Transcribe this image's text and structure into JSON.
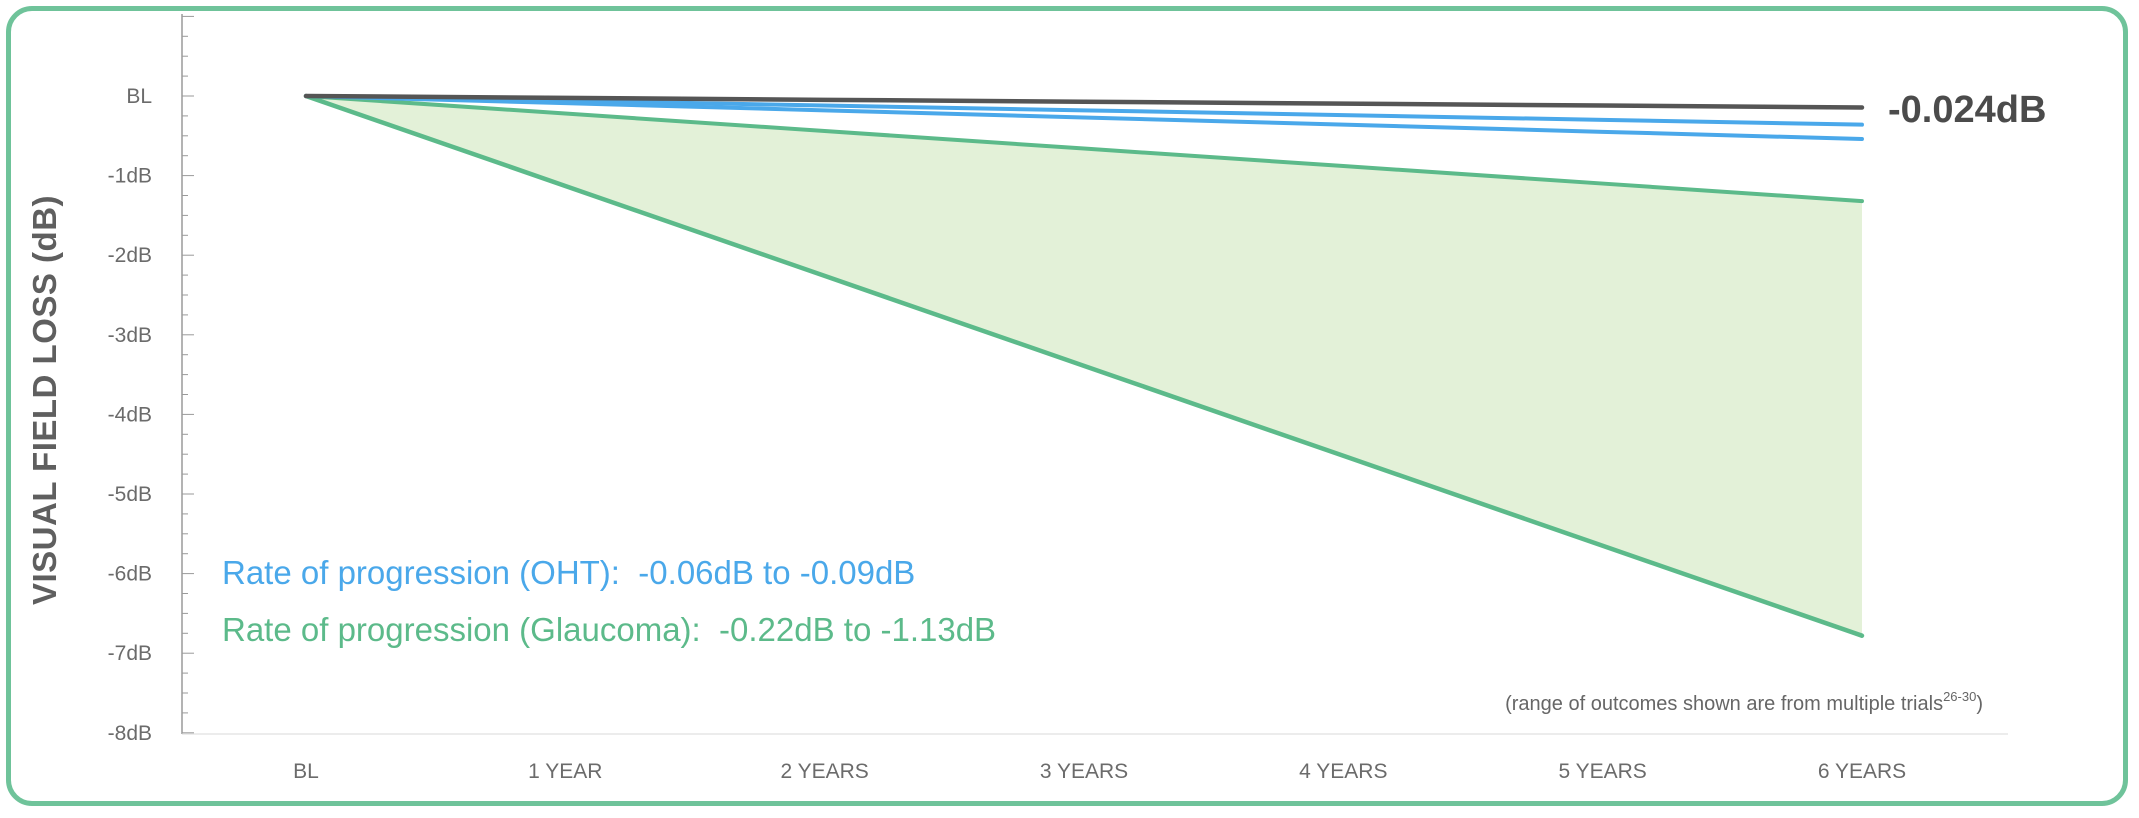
{
  "chart_data": {
    "type": "area",
    "ylabel": "VISUAL FIELD LOSS (dB)",
    "categories": [
      "BL",
      "1 YEAR",
      "2 YEARS",
      "3 YEARS",
      "4 YEARS",
      "5 YEARS",
      "6 YEARS"
    ],
    "x_values": [
      0,
      1,
      2,
      3,
      4,
      5,
      6
    ],
    "y_tick_labels": [
      "BL",
      "-1dB",
      "-2dB",
      "-3dB",
      "-4dB",
      "-5dB",
      "-6dB",
      "-7dB",
      "-8dB"
    ],
    "y_tick_values": [
      0,
      -1,
      -2,
      -3,
      -4,
      -5,
      -6,
      -7,
      -8
    ],
    "ylim": [
      -8,
      1
    ],
    "xlim": [
      -0.5,
      6.5
    ],
    "grid": false,
    "series": [
      {
        "name": "",
        "values": [
          0,
          -0.024,
          -0.048,
          -0.072,
          -0.096,
          -0.12,
          -0.144
        ]
      },
      {
        "name": "",
        "values": [
          0,
          -0.06,
          -0.12,
          -0.18,
          -0.24,
          -0.3,
          -0.36
        ]
      },
      {
        "name": "",
        "values": [
          0,
          -0.09,
          -0.18,
          -0.27,
          -0.36,
          -0.45,
          -0.54
        ]
      },
      {
        "name": "",
        "values": [
          0,
          -0.22,
          -0.44,
          -0.66,
          -0.88,
          -1.1,
          -1.32
        ]
      },
      {
        "name": "",
        "values": [
          0,
          -1.13,
          -2.26,
          -3.39,
          -4.52,
          -5.65,
          -6.78
        ]
      }
    ],
    "end_label": "-0.024dB",
    "annotations": [
      "Rate of progression (OHT):  -0.06dB to -0.09dB",
      "Rate of progression (Glaucoma):  -0.22dB to -1.13dB"
    ],
    "footnote_text": "(range of outcomes shown are from multiple trials",
    "footnote_sup": "26-30",
    "footnote_close": ")"
  },
  "colors": {
    "border": "#6fc39a",
    "normal_line": "#555555",
    "oht_line": "#4aa8ea",
    "glaucoma_line": "#5cba8a",
    "glaucoma_fill": "#e3f1d8",
    "oht_text": "#4aa8ea",
    "glaucoma_text": "#5cba8a",
    "axis": "#9a9a9a"
  }
}
